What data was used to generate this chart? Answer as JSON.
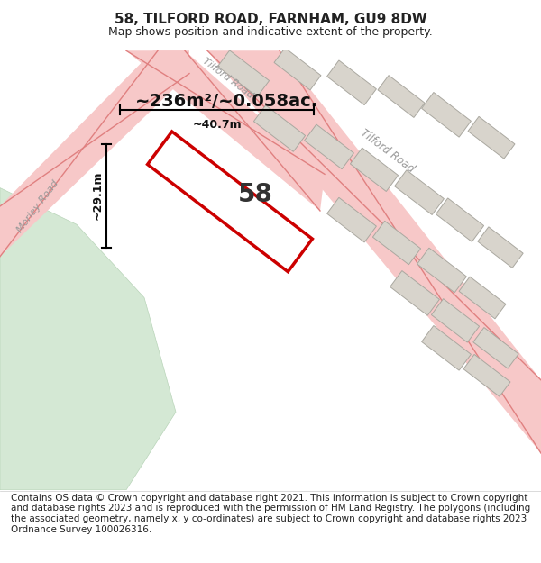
{
  "title": "58, TILFORD ROAD, FARNHAM, GU9 8DW",
  "subtitle": "Map shows position and indicative extent of the property.",
  "footer": "Contains OS data © Crown copyright and database right 2021. This information is subject to Crown copyright and database rights 2023 and is reproduced with the permission of HM Land Registry. The polygons (including the associated geometry, namely x, y co-ordinates) are subject to Crown copyright and database rights 2023 Ordnance Survey 100026316.",
  "area_label": "~236m²/~0.058ac.",
  "width_label": "~40.7m",
  "height_label": "~29.1m",
  "plot_number": "58",
  "map_bg": "#f5f2ee",
  "road_color": "#f7c8c8",
  "road_line_color": "#e08080",
  "plot_outline_color": "#cc0000",
  "building_color": "#d8d4cc",
  "green_area_color": "#d4e8d4",
  "title_fontsize": 11,
  "subtitle_fontsize": 9,
  "footer_fontsize": 7.5
}
